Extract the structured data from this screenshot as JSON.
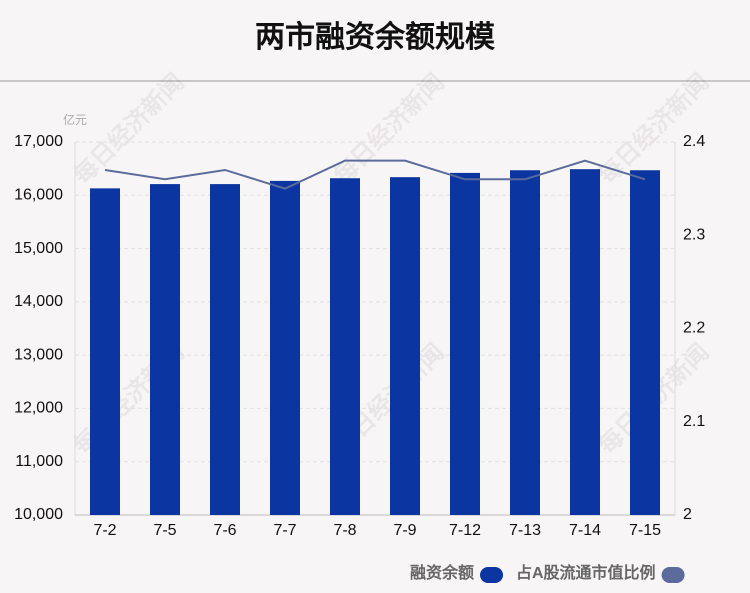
{
  "chart_data": {
    "type": "bar_line",
    "title": "两市融资余额规模",
    "y_unit": "亿元",
    "watermark": "每日经济新闻",
    "categories": [
      "7-2",
      "7-5",
      "7-6",
      "7-7",
      "7-8",
      "7-9",
      "7-12",
      "7-13",
      "7-14",
      "7-15"
    ],
    "series": [
      {
        "name": "融资余额",
        "color": "#0b35a0",
        "type": "bar",
        "values": [
          16130,
          16210,
          16210,
          16270,
          16320,
          16340,
          16420,
          16470,
          16490,
          16470
        ]
      },
      {
        "name": "占A股流通市值比例",
        "color": "#5b6b9b",
        "type": "line",
        "axis": "y2",
        "values": [
          2.37,
          2.36,
          2.37,
          2.35,
          2.38,
          2.38,
          2.36,
          2.36,
          2.38,
          2.36
        ]
      }
    ],
    "ylim": [
      10000,
      17000
    ],
    "yticks": [
      {
        "value": 10000,
        "label": "10,000"
      },
      {
        "value": 11000,
        "label": "11,000"
      },
      {
        "value": 12000,
        "label": "12,000"
      },
      {
        "value": 13000,
        "label": "13,000"
      },
      {
        "value": 14000,
        "label": "14,000"
      },
      {
        "value": 15000,
        "label": "15,000"
      },
      {
        "value": 16000,
        "label": "16,000"
      },
      {
        "value": 17000,
        "label": "17,000"
      }
    ],
    "y2lim": [
      2,
      2.4
    ],
    "y2ticks": [
      2,
      2.1,
      2.2,
      2.3,
      2.4
    ],
    "grid": true
  }
}
